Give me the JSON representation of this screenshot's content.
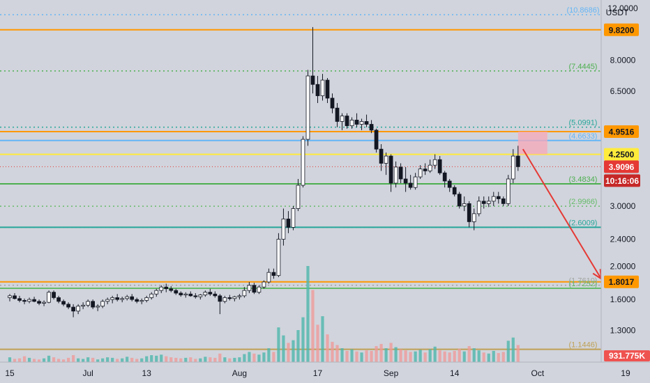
{
  "chart_data": {
    "type": "candlestick",
    "y_axis": {
      "unit_label": "USDT",
      "scale": "log",
      "range": [
        1.05,
        12.0
      ],
      "ticks": [
        "12.0000",
        "9.8200",
        "8.0000",
        "6.5000",
        "4.9516",
        "4.2500",
        "3.9096",
        "3.0000",
        "2.4000",
        "2.0000",
        "1.8017",
        "1.6000",
        "1.3000"
      ],
      "plain_ticks": [
        8.0,
        6.5,
        3.0,
        2.4,
        2.0,
        1.6,
        1.3
      ]
    },
    "x_axis": {
      "ticks": [
        {
          "label": "15",
          "day": 0
        },
        {
          "label": "Jul",
          "day": 16
        },
        {
          "label": "13",
          "day": 28
        },
        {
          "label": "Aug",
          "day": 47
        },
        {
          "label": "17",
          "day": 63
        },
        {
          "label": "Sep",
          "day": 78
        },
        {
          "label": "14",
          "day": 91
        },
        {
          "label": "Oct",
          "day": 108
        },
        {
          "label": "19",
          "day": 126
        }
      ],
      "range_days": [
        -2,
        131
      ]
    },
    "horizontal_levels": [
      {
        "value": 9.82,
        "color": "#ff9800",
        "style": "solid",
        "badge": "9.8200"
      },
      {
        "value": 4.9516,
        "color": "#ff9800",
        "style": "solid",
        "badge": "4.9516"
      },
      {
        "value": 4.6633,
        "color": "#64b5f6",
        "style": "solid"
      },
      {
        "value": 4.25,
        "color": "#ffeb3b",
        "style": "solid",
        "badge": "4.2500"
      },
      {
        "value": 3.4834,
        "color": "#4caf50",
        "style": "solid"
      },
      {
        "value": 2.6009,
        "color": "#26a69a",
        "style": "solid"
      },
      {
        "value": 1.8017,
        "color": "#ff9800",
        "style": "solid",
        "badge": "1.8017"
      },
      {
        "value": 1.7252,
        "color": "#66bb6a",
        "style": "solid"
      },
      {
        "value": 1.1446,
        "color": "#bfa055",
        "style": "solid"
      }
    ],
    "fib_levels": [
      {
        "label": "(10.8686)",
        "value": 10.8686,
        "color": "#64b5f6"
      },
      {
        "label": "(7.4445)",
        "value": 7.4445,
        "color": "#4caf50"
      },
      {
        "label": "(5.0991)",
        "value": 5.0991,
        "color": "#26a69a"
      },
      {
        "label": "(4.6633)",
        "value": 4.6633,
        "color": "#64b5f6"
      },
      {
        "label": "(3.4834)",
        "value": 3.4834,
        "color": "#4caf50"
      },
      {
        "label": "(2.9966)",
        "value": 2.9966,
        "color": "#66bb6a"
      },
      {
        "label": "(2.6009)",
        "value": 2.6009,
        "color": "#26a69a"
      },
      {
        "label": "(1.7610)",
        "value": 1.761,
        "color": "#a0a4a0"
      },
      {
        "label": "(1.7252)",
        "value": 1.7252,
        "color": "#66bb6a"
      },
      {
        "label": "(1.1446)",
        "value": 1.1446,
        "color": "#bfa055"
      }
    ],
    "price_line": {
      "value": 3.9096,
      "color": "#e53935",
      "badge": "3.9096",
      "countdown": "10:16:06"
    },
    "volume_badge": "931.775K",
    "resistance_box": {
      "day_start": 104,
      "day_end": 110,
      "low": 4.25,
      "high": 4.9516,
      "color": "#f7a8b8"
    },
    "arrow": {
      "from_day": 105,
      "from_value": 4.4,
      "to_day": 121,
      "to_value": 1.84,
      "color": "#e53935"
    },
    "candles": [
      [
        1.62,
        1.66,
        1.58,
        1.64
      ],
      [
        1.64,
        1.67,
        1.6,
        1.61
      ],
      [
        1.61,
        1.64,
        1.57,
        1.59
      ],
      [
        1.59,
        1.61,
        1.55,
        1.58
      ],
      [
        1.58,
        1.62,
        1.56,
        1.6
      ],
      [
        1.6,
        1.63,
        1.57,
        1.58
      ],
      [
        1.58,
        1.6,
        1.54,
        1.56
      ],
      [
        1.56,
        1.59,
        1.53,
        1.57
      ],
      [
        1.57,
        1.7,
        1.56,
        1.68
      ],
      [
        1.68,
        1.7,
        1.6,
        1.62
      ],
      [
        1.62,
        1.64,
        1.56,
        1.58
      ],
      [
        1.58,
        1.6,
        1.53,
        1.55
      ],
      [
        1.55,
        1.57,
        1.5,
        1.52
      ],
      [
        1.52,
        1.55,
        1.42,
        1.48
      ],
      [
        1.48,
        1.55,
        1.45,
        1.53
      ],
      [
        1.53,
        1.57,
        1.5,
        1.54
      ],
      [
        1.54,
        1.6,
        1.52,
        1.58
      ],
      [
        1.58,
        1.6,
        1.5,
        1.52
      ],
      [
        1.52,
        1.55,
        1.48,
        1.53
      ],
      [
        1.53,
        1.6,
        1.51,
        1.58
      ],
      [
        1.58,
        1.62,
        1.55,
        1.6
      ],
      [
        1.6,
        1.64,
        1.56,
        1.62
      ],
      [
        1.62,
        1.66,
        1.58,
        1.6
      ],
      [
        1.6,
        1.63,
        1.57,
        1.61
      ],
      [
        1.61,
        1.65,
        1.59,
        1.63
      ],
      [
        1.63,
        1.66,
        1.58,
        1.6
      ],
      [
        1.6,
        1.62,
        1.56,
        1.58
      ],
      [
        1.58,
        1.61,
        1.55,
        1.59
      ],
      [
        1.59,
        1.64,
        1.57,
        1.62
      ],
      [
        1.62,
        1.68,
        1.6,
        1.66
      ],
      [
        1.66,
        1.72,
        1.63,
        1.7
      ],
      [
        1.7,
        1.76,
        1.67,
        1.74
      ],
      [
        1.74,
        1.78,
        1.68,
        1.72
      ],
      [
        1.72,
        1.75,
        1.68,
        1.7
      ],
      [
        1.7,
        1.72,
        1.65,
        1.67
      ],
      [
        1.67,
        1.69,
        1.63,
        1.65
      ],
      [
        1.65,
        1.68,
        1.62,
        1.66
      ],
      [
        1.66,
        1.69,
        1.63,
        1.64
      ],
      [
        1.64,
        1.67,
        1.61,
        1.63
      ],
      [
        1.63,
        1.66,
        1.6,
        1.65
      ],
      [
        1.65,
        1.7,
        1.63,
        1.68
      ],
      [
        1.68,
        1.72,
        1.64,
        1.66
      ],
      [
        1.66,
        1.69,
        1.62,
        1.64
      ],
      [
        1.64,
        1.66,
        1.45,
        1.58
      ],
      [
        1.58,
        1.64,
        1.56,
        1.62
      ],
      [
        1.62,
        1.65,
        1.59,
        1.61
      ],
      [
        1.61,
        1.64,
        1.58,
        1.63
      ],
      [
        1.63,
        1.66,
        1.6,
        1.64
      ],
      [
        1.64,
        1.74,
        1.62,
        1.7
      ],
      [
        1.7,
        1.8,
        1.67,
        1.76
      ],
      [
        1.76,
        1.79,
        1.66,
        1.68
      ],
      [
        1.68,
        1.76,
        1.66,
        1.74
      ],
      [
        1.74,
        1.82,
        1.72,
        1.8
      ],
      [
        1.8,
        1.97,
        1.78,
        1.92
      ],
      [
        1.92,
        1.97,
        1.84,
        1.88
      ],
      [
        1.88,
        2.5,
        1.86,
        2.4
      ],
      [
        2.4,
        2.95,
        2.3,
        2.75
      ],
      [
        2.75,
        2.9,
        2.5,
        2.6
      ],
      [
        2.6,
        3.0,
        2.55,
        2.95
      ],
      [
        2.95,
        3.6,
        2.9,
        3.45
      ],
      [
        3.45,
        4.8,
        3.4,
        4.7
      ],
      [
        4.7,
        7.5,
        4.5,
        7.2
      ],
      [
        7.2,
        10.0,
        6.4,
        6.8
      ],
      [
        6.8,
        7.2,
        6.0,
        6.3
      ],
      [
        6.3,
        7.3,
        6.1,
        7.0
      ],
      [
        7.0,
        7.1,
        6.0,
        6.2
      ],
      [
        6.2,
        6.4,
        5.6,
        5.8
      ],
      [
        5.8,
        6.0,
        5.1,
        5.3
      ],
      [
        5.3,
        5.6,
        5.0,
        5.5
      ],
      [
        5.5,
        5.6,
        5.05,
        5.15
      ],
      [
        5.15,
        5.45,
        5.05,
        5.35
      ],
      [
        5.35,
        5.6,
        5.1,
        5.2
      ],
      [
        5.2,
        5.4,
        5.0,
        5.3
      ],
      [
        5.3,
        5.55,
        5.1,
        5.2
      ],
      [
        5.2,
        5.35,
        4.9,
        5.0
      ],
      [
        5.0,
        5.05,
        4.3,
        4.4
      ],
      [
        4.4,
        4.55,
        3.8,
        4.0
      ],
      [
        4.0,
        4.3,
        3.7,
        4.2
      ],
      [
        4.2,
        4.25,
        3.3,
        3.5
      ],
      [
        3.5,
        4.05,
        3.4,
        3.9
      ],
      [
        3.9,
        4.0,
        3.5,
        3.6
      ],
      [
        3.6,
        3.9,
        3.3,
        3.5
      ],
      [
        3.5,
        3.7,
        3.35,
        3.4
      ],
      [
        3.4,
        3.75,
        3.35,
        3.65
      ],
      [
        3.65,
        3.95,
        3.6,
        3.85
      ],
      [
        3.85,
        4.0,
        3.7,
        3.8
      ],
      [
        3.8,
        4.1,
        3.75,
        3.95
      ],
      [
        3.95,
        4.25,
        3.85,
        4.1
      ],
      [
        4.1,
        4.2,
        3.7,
        3.75
      ],
      [
        3.75,
        3.8,
        3.4,
        3.55
      ],
      [
        3.55,
        3.6,
        3.3,
        3.4
      ],
      [
        3.4,
        3.45,
        3.2,
        3.25
      ],
      [
        3.25,
        3.3,
        2.95,
        3.0
      ],
      [
        3.0,
        3.2,
        2.9,
        3.05
      ],
      [
        3.05,
        3.1,
        2.6,
        2.7
      ],
      [
        2.7,
        2.95,
        2.55,
        2.85
      ],
      [
        2.85,
        3.2,
        2.8,
        3.1
      ],
      [
        3.1,
        3.2,
        2.95,
        3.05
      ],
      [
        3.05,
        3.2,
        2.98,
        3.1
      ],
      [
        3.1,
        3.3,
        3.0,
        3.2
      ],
      [
        3.2,
        3.3,
        3.05,
        3.15
      ],
      [
        3.15,
        3.2,
        3.0,
        3.05
      ],
      [
        3.05,
        3.7,
        3.0,
        3.6
      ],
      [
        3.6,
        4.4,
        3.5,
        4.2
      ],
      [
        4.2,
        4.5,
        3.8,
        3.91
      ]
    ],
    "volumes": [
      0.9,
      0.6,
      0.7,
      1.1,
      0.8,
      0.6,
      0.5,
      0.7,
      1.2,
      0.9,
      0.6,
      0.5,
      0.8,
      1.3,
      0.7,
      0.6,
      0.9,
      0.8,
      0.5,
      0.7,
      0.9,
      0.8,
      0.6,
      0.7,
      1.0,
      0.8,
      0.6,
      0.7,
      1.1,
      1.3,
      1.2,
      1.4,
      1.1,
      0.9,
      0.8,
      0.7,
      0.8,
      0.9,
      0.6,
      0.7,
      1.0,
      0.9,
      0.8,
      1.6,
      0.9,
      0.7,
      0.8,
      0.9,
      1.5,
      1.9,
      1.6,
      1.4,
      1.8,
      2.6,
      1.9,
      6.5,
      5.0,
      3.6,
      4.1,
      6.0,
      8.4,
      18.0,
      13.5,
      7.0,
      8.6,
      5.2,
      3.8,
      3.2,
      2.6,
      2.1,
      2.4,
      2.0,
      1.8,
      2.2,
      2.1,
      3.0,
      3.4,
      2.6,
      3.6,
      2.8,
      2.4,
      2.2,
      1.9,
      2.0,
      2.3,
      1.8,
      2.4,
      2.9,
      2.2,
      2.0,
      1.8,
      2.1,
      2.5,
      2.0,
      3.0,
      2.6,
      2.2,
      1.8,
      1.6,
      2.1,
      1.7,
      1.9,
      4.0,
      4.6,
      3.2
    ]
  }
}
